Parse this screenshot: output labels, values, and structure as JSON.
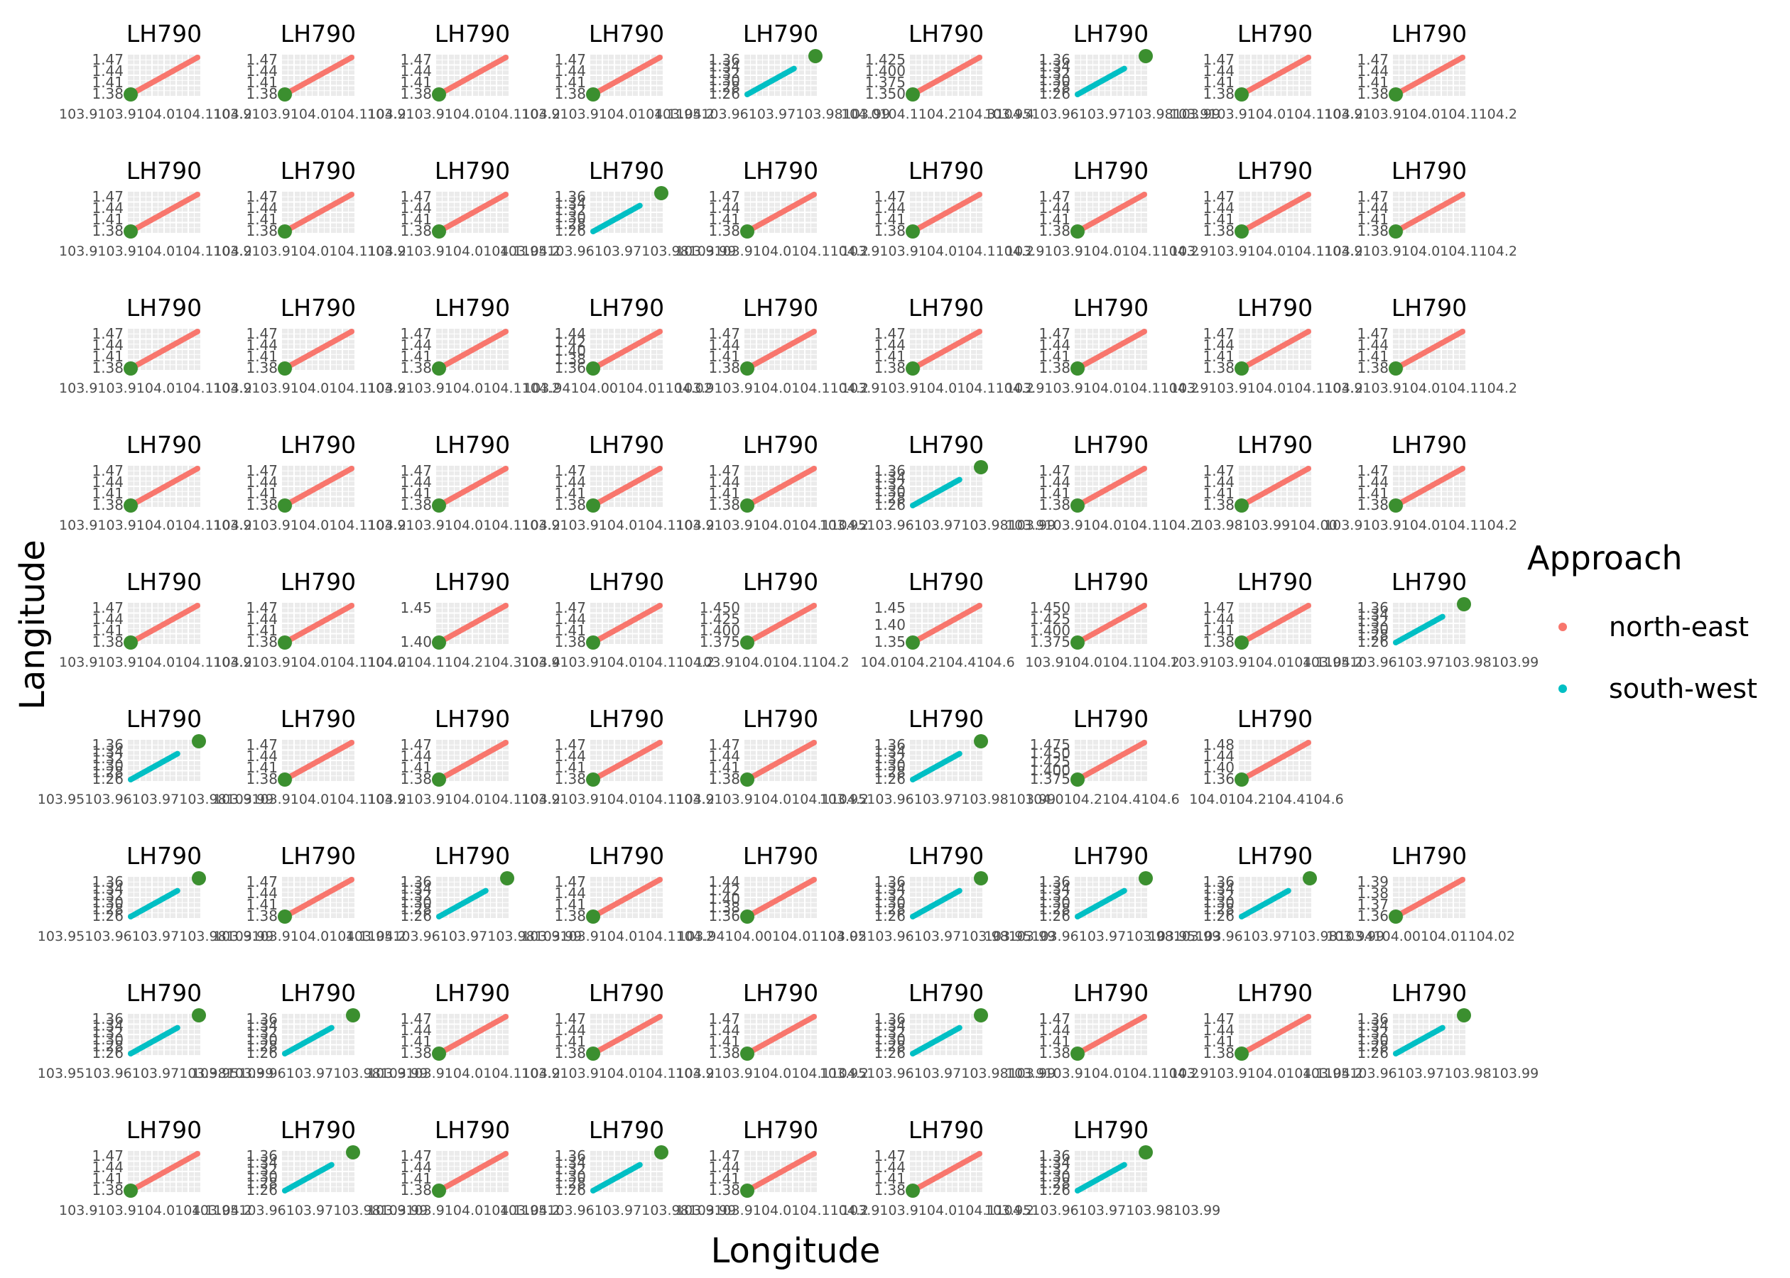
{
  "chart_data": {
    "type": "scatter",
    "facet_title": "LH790",
    "xlabel": "Longitude",
    "ylabel": "Langitude",
    "legend": {
      "title": "Approach",
      "position": "right",
      "entries": [
        {
          "label": "north-east",
          "color": "#F8766D"
        },
        {
          "label": "south-west",
          "color": "#00BFC4"
        }
      ]
    },
    "airport_marker_color": "#3B8F2F",
    "grid": true,
    "facet_rows": 9,
    "facet_cols": 9,
    "panel_kinds": [
      "ne",
      "ne",
      "ne",
      "ne",
      "sw",
      "ne_wide",
      "sw",
      "ne",
      "ne",
      "ne",
      "ne",
      "ne",
      "sw",
      "ne",
      "ne",
      "ne",
      "ne",
      "ne",
      "ne",
      "ne",
      "ne",
      "ne_fine",
      "ne",
      "ne",
      "ne",
      "ne",
      "ne",
      "ne",
      "ne",
      "ne",
      "ne",
      "ne",
      "sw",
      "ne",
      "ne_low",
      "ne",
      "ne",
      "ne",
      "ne_mid",
      "ne",
      "ne_b",
      "ne_c",
      "ne_b",
      "ne",
      "sw",
      "sw",
      "ne",
      "ne",
      "ne",
      "ne",
      "sw",
      "ne_d",
      "ne_e",
      "",
      "sw",
      "ne",
      "sw",
      "ne",
      "ne_f",
      "sw",
      "sw",
      "sw",
      "ne_g",
      "sw",
      "sw",
      "ne",
      "ne",
      "ne",
      "sw",
      "ne",
      "ne",
      "sw",
      "ne",
      "sw",
      "ne",
      "sw",
      "ne",
      "ne",
      "sw",
      "",
      ""
    ],
    "tick_sets": {
      "ne": {
        "y": [
          "1.47",
          "1.44",
          "1.41",
          "1.38"
        ],
        "x": "103.9103.9104.0104.1104.2"
      },
      "ne_wide": {
        "y": [
          "1.425",
          "1.400",
          "1.375",
          "1.350"
        ],
        "x": "104.0104.1104.2104.3104.4"
      },
      "sw": {
        "y": [
          "1.36",
          "1.34",
          "1.32",
          "1.30",
          "1.28",
          "1.26"
        ],
        "x": "103.95103.96103.97103.98103.99"
      },
      "ne_fine": {
        "y": [
          "1.44",
          "1.42",
          "1.40",
          "1.38",
          "1.36"
        ],
        "x": "103.94104.00104.01104.02"
      },
      "ne_low": {
        "y": [
          "1.47",
          "1.44",
          "1.41",
          "1.38"
        ],
        "x": "103.98103.99104.00"
      },
      "ne_mid": {
        "y": [
          "1.45",
          "1.40"
        ],
        "x": "104.0104.1104.2104.3104.4"
      },
      "ne_b": {
        "y": [
          "1.450",
          "1.425",
          "1.400",
          "1.375"
        ],
        "x": "103.9104.0104.1104.2"
      },
      "ne_c": {
        "y": [
          "1.45",
          "1.40",
          "1.35"
        ],
        "x": "104.0104.2104.4104.6"
      },
      "ne_d": {
        "y": [
          "1.475",
          "1.450",
          "1.425",
          "1.400",
          "1.375"
        ],
        "x": "104.0104.2104.4104.6"
      },
      "ne_e": {
        "y": [
          "1.48",
          "1.44",
          "1.40",
          "1.36"
        ],
        "x": "104.0104.2104.4104.6"
      },
      "ne_f": {
        "y": [
          "1.44",
          "1.42",
          "1.40",
          "1.38",
          "1.36"
        ],
        "x": "103.94104.00104.01104.02"
      },
      "ne_g": {
        "y": [
          "1.39",
          "1.38",
          "1.37",
          "1.36"
        ],
        "x": "103.94104.00104.01104.02"
      }
    },
    "series": [
      {
        "name": "north-east",
        "x": [
          103.96,
          104.02
        ],
        "y": [
          1.38,
          1.47
        ]
      },
      {
        "name": "south-west",
        "x": [
          103.96,
          103.99
        ],
        "y": [
          1.26,
          1.36
        ]
      }
    ]
  }
}
